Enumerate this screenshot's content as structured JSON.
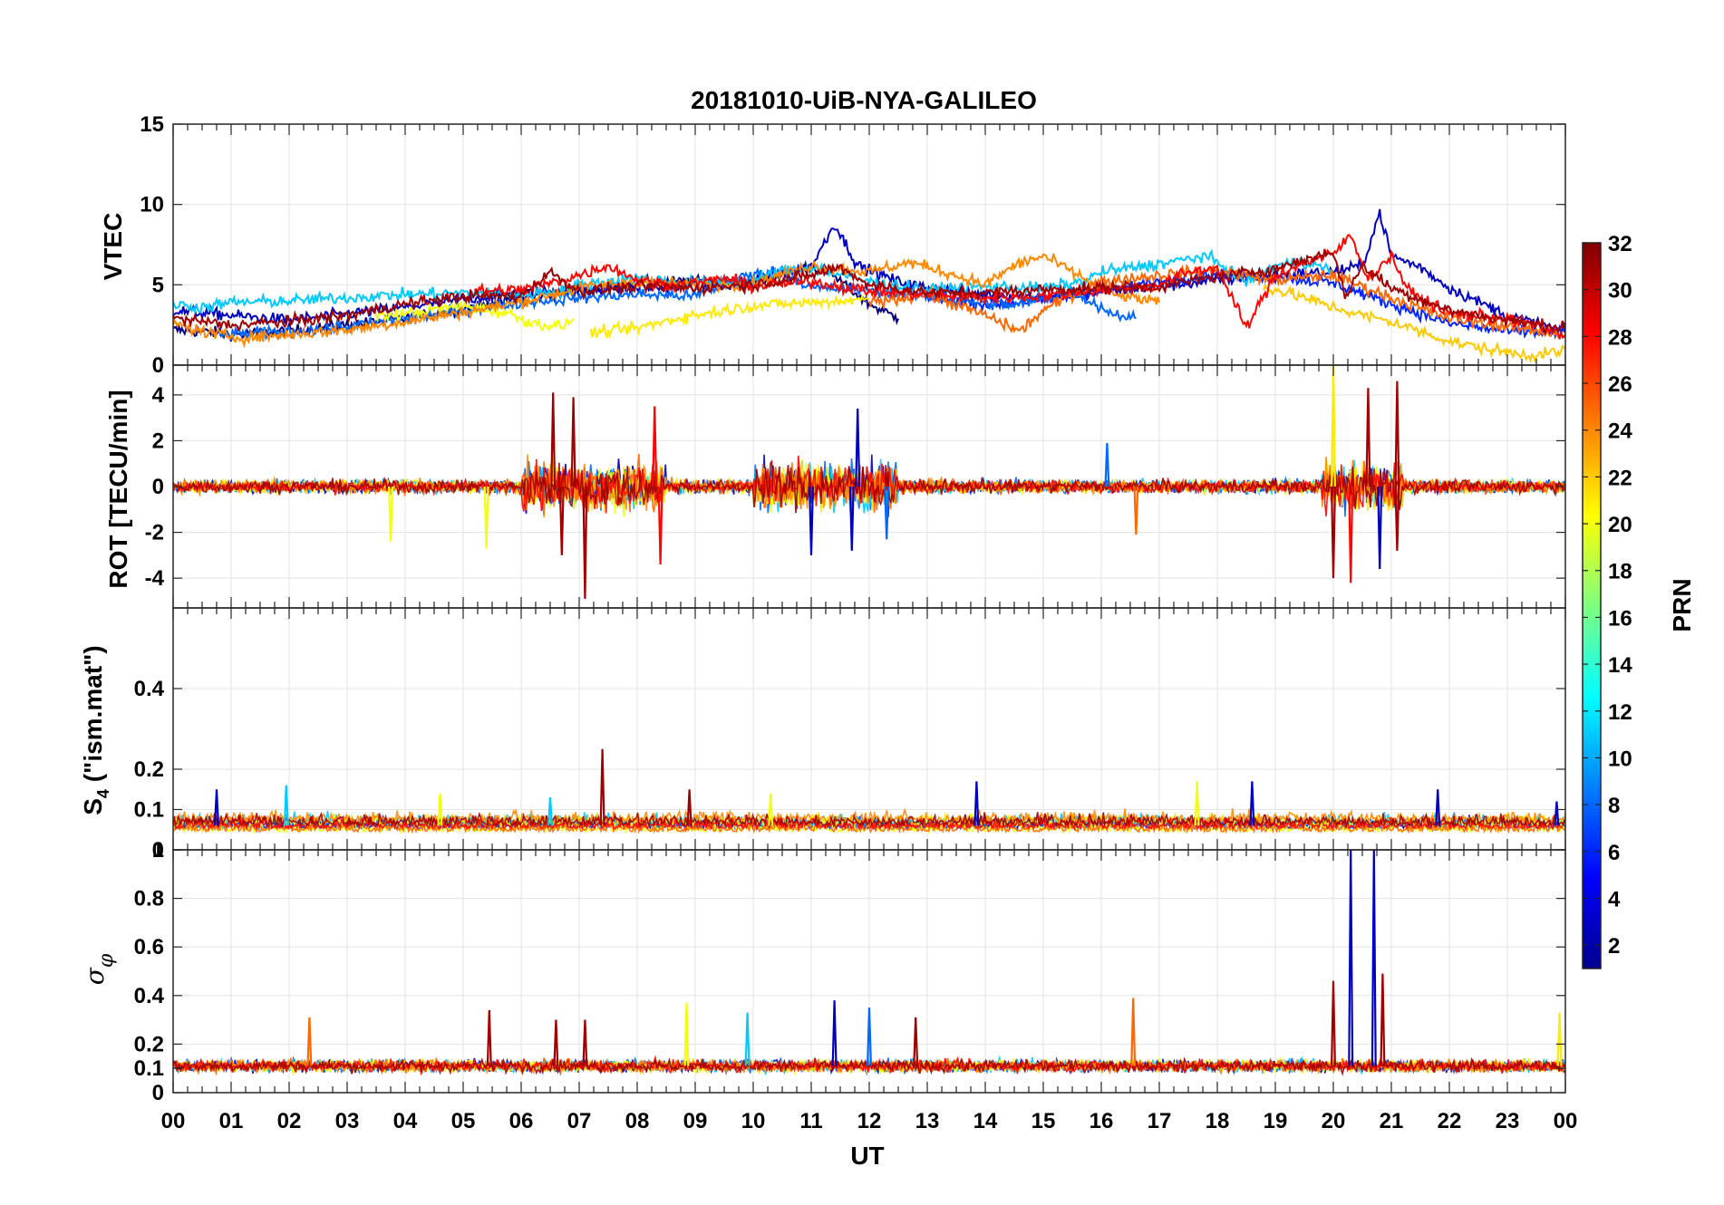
{
  "chart_data": {
    "type": "line",
    "title": "20181010-UiB-NYA-GALILEO",
    "xlabel": "UT",
    "x_ticks": [
      "00",
      "01",
      "02",
      "03",
      "04",
      "05",
      "06",
      "07",
      "08",
      "09",
      "10",
      "11",
      "12",
      "13",
      "14",
      "15",
      "16",
      "17",
      "18",
      "19",
      "20",
      "21",
      "22",
      "23",
      "00"
    ],
    "xlim_hours": [
      0,
      24
    ],
    "grid": true,
    "colorbar": {
      "label": "PRN",
      "range": [
        1,
        32
      ],
      "ticks": [
        "2",
        "4",
        "6",
        "8",
        "10",
        "12",
        "14",
        "16",
        "18",
        "20",
        "22",
        "24",
        "26",
        "28",
        "30",
        "32"
      ],
      "colormap": "jet"
    },
    "panels": [
      {
        "id": "vtec",
        "ylabel": "VTEC",
        "ylim": [
          0,
          15
        ],
        "y_ticks": [
          0,
          5,
          10,
          15
        ],
        "series": [
          {
            "prn": 1,
            "x": [
              0,
              1.2,
              2.5,
              3.8,
              5,
              6,
              7,
              8,
              9,
              10,
              11,
              11.3,
              12,
              12.5
            ],
            "y": [
              2.2,
              1.9,
              2.3,
              2.8,
              3.5,
              4.2,
              4.6,
              5.1,
              5.2,
              5.1,
              6.2,
              5.8,
              3.8,
              2.9
            ]
          },
          {
            "prn": 3,
            "x": [
              0,
              1,
              2,
              3,
              4,
              5,
              6,
              7,
              8,
              9,
              10,
              11,
              11.4,
              11.8,
              12.5,
              13,
              14,
              15,
              16,
              17,
              18,
              19,
              20,
              20.5,
              20.8,
              21,
              21.5,
              22,
              23,
              24
            ],
            "y": [
              3.4,
              3.1,
              2.8,
              3.2,
              3.6,
              4.1,
              4.5,
              4.7,
              4.8,
              4.9,
              5.3,
              6.1,
              8.8,
              6.2,
              5.2,
              4.8,
              4.4,
              4.2,
              4.6,
              4.9,
              5.3,
              5.6,
              5.8,
              6.2,
              9.5,
              6.8,
              6.1,
              4.8,
              3.1,
              2.1
            ]
          },
          {
            "prn": 6,
            "x": [
              13,
              14,
              15,
              16,
              17,
              18,
              19,
              20,
              21,
              22,
              23,
              24
            ],
            "y": [
              4.2,
              3.8,
              4.0,
              4.6,
              5.2,
              5.7,
              5.5,
              5.1,
              3.8,
              2.6,
              2.1,
              2.0
            ]
          },
          {
            "prn": 8,
            "x": [
              0.8,
              2,
              3,
              4,
              5,
              6,
              7,
              8,
              9,
              9.8,
              10.5,
              11,
              12,
              12.8,
              13.5,
              14.5,
              15.5,
              16.2,
              16.6
            ],
            "y": [
              1.9,
              2.1,
              2.4,
              2.9,
              3.4,
              3.9,
              4.2,
              4.4,
              4.3,
              5.5,
              5.9,
              4.8,
              4.7,
              4.4,
              4.0,
              3.7,
              4.6,
              3.2,
              2.9
            ]
          },
          {
            "prn": 11,
            "x": [
              0,
              0.5,
              1,
              2,
              3,
              4,
              5,
              6,
              6.6,
              7,
              8,
              9,
              10,
              10.4,
              11,
              12,
              13,
              14,
              15,
              15.7,
              16,
              17,
              17.8,
              18.5,
              19,
              19.5,
              20
            ],
            "y": [
              3.8,
              3.6,
              3.9,
              4.0,
              4.2,
              4.4,
              4.5,
              4.4,
              4.6,
              5.0,
              5.4,
              5.1,
              5.2,
              5.8,
              6.1,
              5.2,
              4.7,
              4.9,
              4.8,
              5.2,
              5.8,
              6.3,
              6.8,
              5.2,
              6.2,
              6.4,
              5.9
            ]
          },
          {
            "prn": 20,
            "x": [
              3.5,
              4.2,
              5,
              5.8,
              6.2,
              6.7,
              6.9
            ],
            "y": [
              3.0,
              3.3,
              3.7,
              3.2,
              2.6,
              2.4,
              2.9
            ]
          },
          {
            "prn": 21,
            "x": [
              7.2,
              8,
              8.8,
              9.5,
              10,
              11,
              12
            ],
            "y": [
              2.0,
              2.3,
              3.0,
              3.4,
              3.7,
              3.9,
              4.1
            ]
          },
          {
            "prn": 22,
            "x": [
              18.8,
              19.5,
              20,
              20.5,
              21,
              21.5,
              22,
              22.5,
              23,
              23.5,
              24
            ],
            "y": [
              4.9,
              4.2,
              3.6,
              3.1,
              2.7,
              2.1,
              1.5,
              1.1,
              0.8,
              0.6,
              0.9
            ]
          },
          {
            "prn": 24,
            "x": [
              0,
              0.6,
              1.2,
              2,
              3,
              3.8,
              4.5,
              5.5,
              6.2,
              7,
              8,
              9,
              10,
              11,
              12,
              12.7,
              13.3,
              14,
              14.5,
              15,
              15.6,
              16.2,
              17
            ],
            "y": [
              2.6,
              2.0,
              1.7,
              1.9,
              2.2,
              2.6,
              3.0,
              3.6,
              4.1,
              4.8,
              5.2,
              5.0,
              5.1,
              6.2,
              5.8,
              6.4,
              5.8,
              5.0,
              6.2,
              6.8,
              5.6,
              4.4,
              3.9
            ]
          },
          {
            "prn": 25,
            "x": [
              12,
              13,
              14,
              14.6,
              15,
              15.5,
              16,
              17,
              18,
              19,
              20,
              21,
              22,
              23,
              24
            ],
            "y": [
              3.9,
              4.4,
              3.1,
              2.1,
              3.4,
              4.4,
              5.2,
              5.6,
              5.9,
              5.3,
              5.6,
              4.2,
              2.9,
              2.4,
              1.9
            ]
          },
          {
            "prn": 28,
            "x": [
              5.2,
              6,
              6.5,
              7,
              7.5,
              8,
              8.5,
              9,
              9.5,
              10,
              11,
              12,
              13,
              14,
              15,
              16,
              17,
              17.5,
              18,
              18.5,
              19,
              19.5,
              20,
              20.3,
              20.6,
              21,
              21.3,
              22,
              23,
              24
            ],
            "y": [
              4.6,
              4.7,
              5.1,
              5.6,
              6.2,
              5.3,
              5.0,
              5.1,
              5.4,
              4.9,
              5.2,
              4.6,
              4.4,
              4.2,
              4.3,
              4.7,
              5.0,
              5.8,
              6.1,
              2.3,
              5.6,
              6.4,
              6.9,
              8.1,
              5.4,
              6.8,
              4.6,
              3.2,
              2.9,
              1.9
            ]
          },
          {
            "prn": 31,
            "x": [
              0,
              1,
              2,
              3,
              4,
              5,
              6,
              6.5,
              7,
              8,
              9,
              10,
              11,
              11.5,
              12,
              13,
              14,
              15,
              16,
              17,
              18,
              19,
              20,
              20.2,
              20.5,
              21,
              22,
              23,
              24
            ],
            "y": [
              2.9,
              2.5,
              2.7,
              3.1,
              3.8,
              4.3,
              4.3,
              5.8,
              4.6,
              4.9,
              4.8,
              5.0,
              5.6,
              6.1,
              5.0,
              4.5,
              4.5,
              4.7,
              4.8,
              4.9,
              5.5,
              6.0,
              7.1,
              4.2,
              6.2,
              4.8,
              3.4,
              2.8,
              2.3
            ]
          }
        ]
      },
      {
        "id": "rot",
        "ylabel": "ROT [TECU/min]",
        "ylim": [
          -5.3,
          5.3
        ],
        "y_ticks": [
          -4,
          -2,
          0,
          2,
          4
        ],
        "series_note": "rapid fluctuations around 0 for all PRNs",
        "spikes": [
          {
            "prn": 20,
            "x": 3.75,
            "y": -2.4
          },
          {
            "prn": 20,
            "x": 5.4,
            "y": -2.7
          },
          {
            "prn": 31,
            "x": 6.55,
            "y": 4.1
          },
          {
            "prn": 31,
            "x": 6.7,
            "y": -3.0
          },
          {
            "prn": 31,
            "x": 7.1,
            "y": -4.9
          },
          {
            "prn": 31,
            "x": 6.9,
            "y": 3.9
          },
          {
            "prn": 28,
            "x": 8.4,
            "y": -3.4
          },
          {
            "prn": 28,
            "x": 8.3,
            "y": 3.5
          },
          {
            "prn": 3,
            "x": 11.0,
            "y": -3.0
          },
          {
            "prn": 3,
            "x": 11.7,
            "y": -2.8
          },
          {
            "prn": 3,
            "x": 11.8,
            "y": 3.4
          },
          {
            "prn": 8,
            "x": 12.3,
            "y": -2.3
          },
          {
            "prn": 25,
            "x": 16.6,
            "y": -2.1
          },
          {
            "prn": 8,
            "x": 16.1,
            "y": 1.9
          },
          {
            "prn": 21,
            "x": 20.0,
            "y": 5.3
          },
          {
            "prn": 28,
            "x": 20.3,
            "y": -4.2
          },
          {
            "prn": 31,
            "x": 20.0,
            "y": -4.0
          },
          {
            "prn": 31,
            "x": 20.6,
            "y": 4.3
          },
          {
            "prn": 31,
            "x": 21.1,
            "y": 4.6
          },
          {
            "prn": 31,
            "x": 21.1,
            "y": -2.8
          },
          {
            "prn": 3,
            "x": 20.8,
            "y": -3.6
          }
        ]
      },
      {
        "id": "s4",
        "ylabel": "S4 (\"ism.mat\")",
        "ylim": [
          0,
          0.6
        ],
        "y_ticks": [
          0,
          0.1,
          0.2,
          0.4
        ],
        "series_note": "S4 mostly between 0.02 and 0.12",
        "spikes": [
          {
            "prn": 3,
            "x": 0.75,
            "y": 0.15
          },
          {
            "prn": 11,
            "x": 1.95,
            "y": 0.16
          },
          {
            "prn": 20,
            "x": 4.6,
            "y": 0.14
          },
          {
            "prn": 11,
            "x": 6.5,
            "y": 0.13
          },
          {
            "prn": 31,
            "x": 7.4,
            "y": 0.25
          },
          {
            "prn": 31,
            "x": 8.9,
            "y": 0.15
          },
          {
            "prn": 20,
            "x": 10.3,
            "y": 0.14
          },
          {
            "prn": 3,
            "x": 13.85,
            "y": 0.17
          },
          {
            "prn": 20,
            "x": 17.65,
            "y": 0.17
          },
          {
            "prn": 3,
            "x": 18.6,
            "y": 0.17
          },
          {
            "prn": 3,
            "x": 21.8,
            "y": 0.15
          },
          {
            "prn": 3,
            "x": 23.85,
            "y": 0.12
          }
        ]
      },
      {
        "id": "sigma_phi",
        "ylabel": "σφ",
        "ylim": [
          0,
          1.0
        ],
        "y_ticks": [
          0,
          0.1,
          0.2,
          0.4,
          0.6,
          0.8,
          1
        ],
        "series_note": "sigma_phi mostly between 0.09 and 0.15",
        "spikes": [
          {
            "prn": 25,
            "x": 2.35,
            "y": 0.31
          },
          {
            "prn": 31,
            "x": 5.45,
            "y": 0.34
          },
          {
            "prn": 31,
            "x": 6.6,
            "y": 0.3
          },
          {
            "prn": 31,
            "x": 7.1,
            "y": 0.3
          },
          {
            "prn": 20,
            "x": 8.85,
            "y": 0.37
          },
          {
            "prn": 11,
            "x": 9.9,
            "y": 0.33
          },
          {
            "prn": 3,
            "x": 11.4,
            "y": 0.38
          },
          {
            "prn": 8,
            "x": 12.0,
            "y": 0.35
          },
          {
            "prn": 31,
            "x": 12.8,
            "y": 0.31
          },
          {
            "prn": 25,
            "x": 16.55,
            "y": 0.39
          },
          {
            "prn": 31,
            "x": 20.0,
            "y": 0.46
          },
          {
            "prn": 3,
            "x": 20.3,
            "y": 1.0
          },
          {
            "prn": 3,
            "x": 20.7,
            "y": 1.0
          },
          {
            "prn": 31,
            "x": 20.85,
            "y": 0.49
          },
          {
            "prn": 21,
            "x": 23.9,
            "y": 0.33
          }
        ]
      }
    ]
  }
}
